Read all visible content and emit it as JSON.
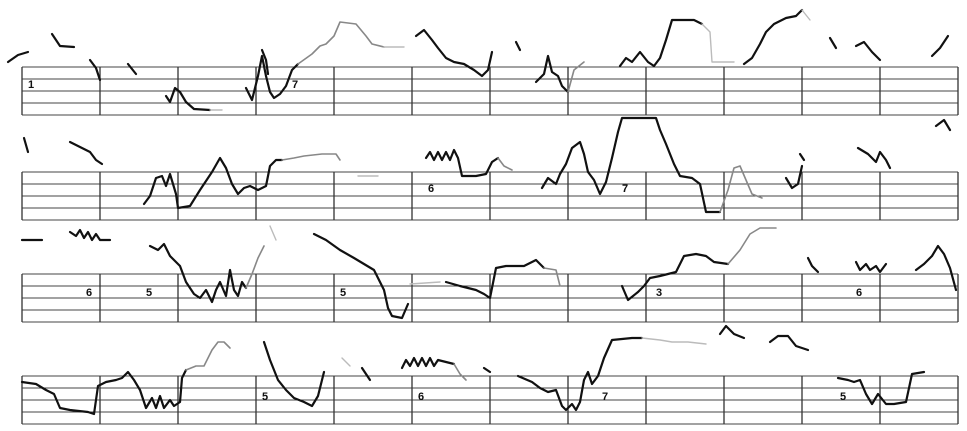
{
  "systems": [
    {
      "markers": [
        {
          "measure": 0,
          "label": "1"
        },
        {
          "measure": 3,
          "label": "7"
        }
      ]
    },
    {
      "markers": [
        {
          "measure": 5,
          "label": "6"
        },
        {
          "measure": 7,
          "label": "7"
        }
      ]
    },
    {
      "markers": [
        {
          "measure": 0,
          "label": "6"
        },
        {
          "measure": 1,
          "label": "5"
        },
        {
          "measure": 4,
          "label": "5"
        },
        {
          "measure": 8,
          "label": "3"
        },
        {
          "measure": 11,
          "label": "6"
        }
      ]
    },
    {
      "markers": [
        {
          "measure": 3,
          "label": "5"
        },
        {
          "measure": 5,
          "label": "6"
        },
        {
          "measure": 7,
          "label": "7"
        },
        {
          "measure": 10,
          "label": "5"
        }
      ]
    }
  ]
}
